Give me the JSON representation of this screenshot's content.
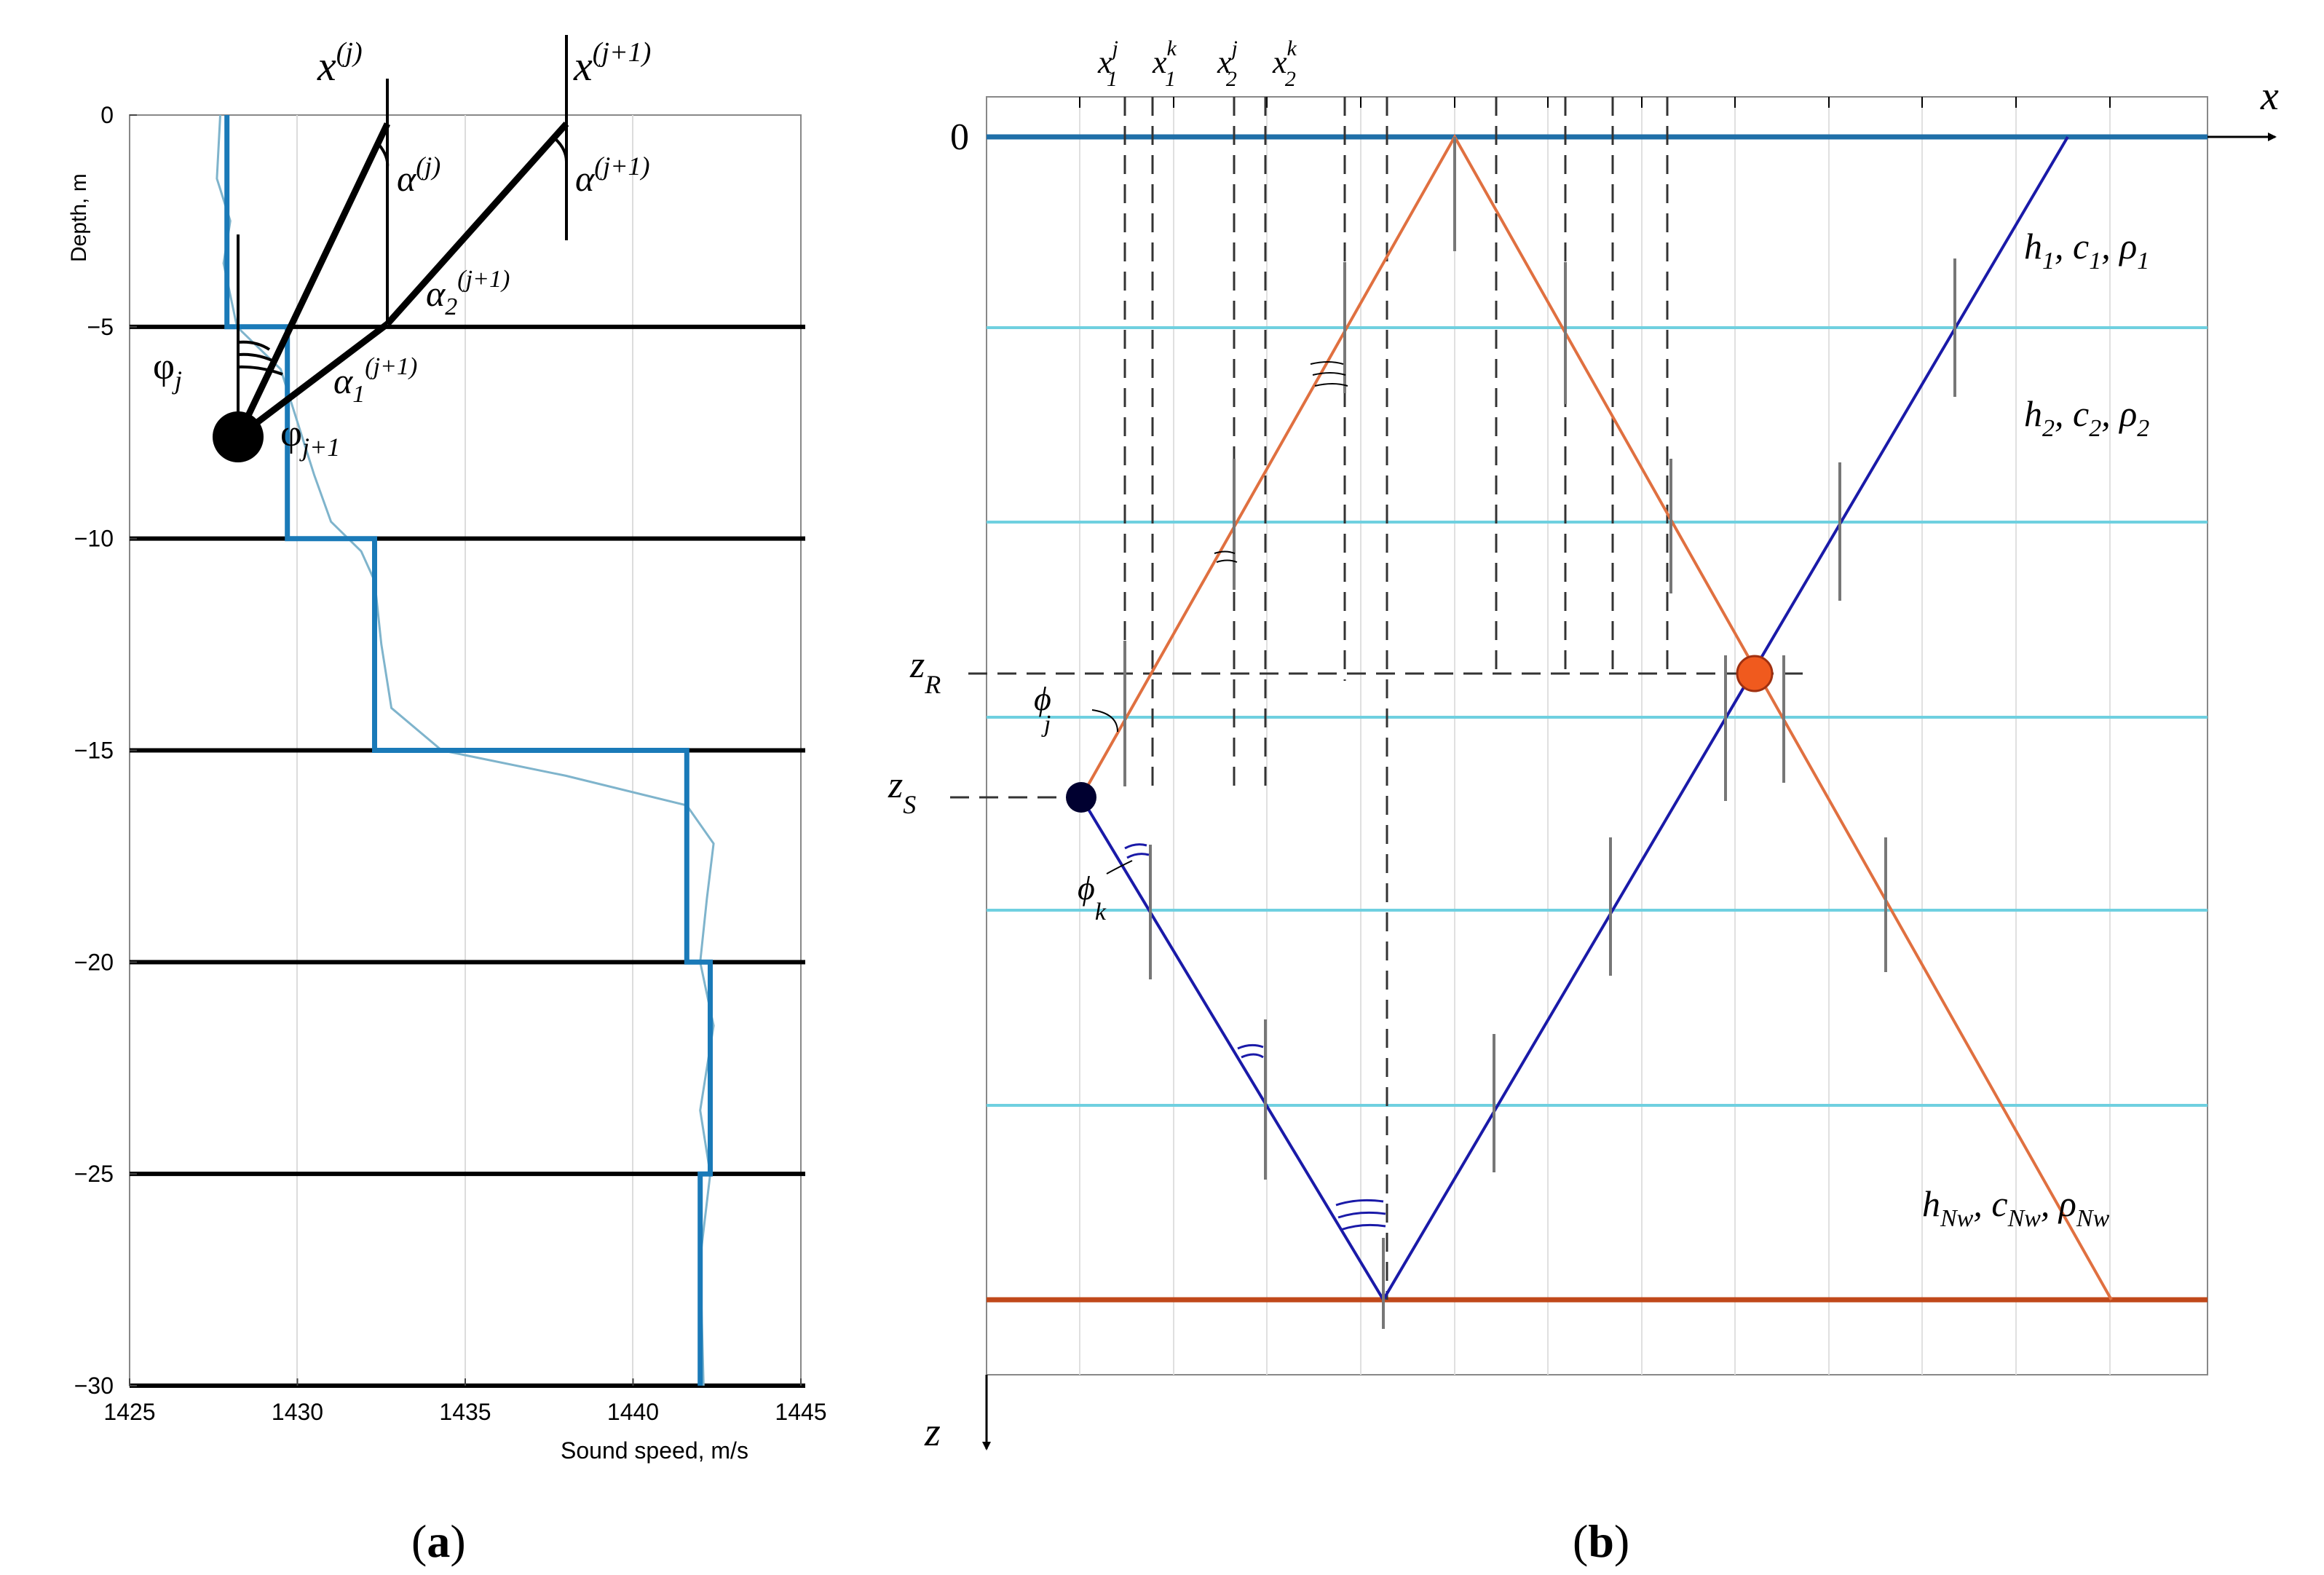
{
  "panel_a": {
    "chart_data": {
      "type": "line",
      "xlabel": "Sound speed, m/s",
      "ylabel": "Depth, m",
      "xlim": [
        1425,
        1445
      ],
      "ylim": [
        -30,
        0
      ],
      "x_ticks": [
        "1425",
        "1430",
        "1435",
        "1440",
        "1445"
      ],
      "y_ticks": [
        "0",
        "−5",
        "−10",
        "−15",
        "−20",
        "−25",
        "−30"
      ],
      "grid": true,
      "series": [
        {
          "style": "stepped profile (thick)",
          "color": "#1a7ab8",
          "points": [
            [
              1427.9,
              0
            ],
            [
              1427.9,
              -5
            ],
            [
              1429.7,
              -5
            ],
            [
              1429.7,
              -10
            ],
            [
              1432.3,
              -10
            ],
            [
              1432.3,
              -15
            ],
            [
              1441.6,
              -15
            ],
            [
              1441.6,
              -20
            ],
            [
              1442.3,
              -20
            ],
            [
              1442.3,
              -25
            ],
            [
              1442.0,
              -25
            ],
            [
              1442.0,
              -30
            ]
          ]
        },
        {
          "style": "measured profile (thin)",
          "color": "#7fb4cc",
          "points": [
            [
              1427.7,
              0
            ],
            [
              1427.6,
              -1.5
            ],
            [
              1428.0,
              -2.5
            ],
            [
              1427.8,
              -3.5
            ],
            [
              1428.2,
              -5
            ],
            [
              1429.5,
              -6
            ],
            [
              1430.5,
              -8.5
            ],
            [
              1431.0,
              -9.6
            ],
            [
              1431.9,
              -10.3
            ],
            [
              1432.3,
              -11
            ],
            [
              1432.5,
              -12.5
            ],
            [
              1432.8,
              -14
            ],
            [
              1434.3,
              -15
            ],
            [
              1438.0,
              -15.6
            ],
            [
              1441.6,
              -16.3
            ],
            [
              1442.4,
              -17.2
            ],
            [
              1442.2,
              -18.5
            ],
            [
              1442.0,
              -20
            ],
            [
              1442.4,
              -21.5
            ],
            [
              1442.0,
              -23.5
            ],
            [
              1442.3,
              -25
            ],
            [
              1442.0,
              -27
            ],
            [
              1442.1,
              -30
            ]
          ]
        }
      ],
      "horizontal_lines": [
        -5,
        -10,
        -15,
        -20,
        -25,
        -30
      ]
    },
    "labels": {
      "x_j": "x",
      "x_j_sup": "(j)",
      "x_j1": "x",
      "x_j1_sup": "(j+1)",
      "alpha_j": "α",
      "alpha_j_sup": "(j)",
      "alpha_j1": "α",
      "alpha_j1_sup": "(j+1)",
      "alpha2": "α",
      "alpha2_sub": "2",
      "alpha2_sup": "(j+1)",
      "alpha1": "α",
      "alpha1_sub": "1",
      "alpha1_sup": "(j+1)",
      "phi_j": "φ",
      "phi_j_sub": "j",
      "phi_j1": "φ",
      "phi_j1_sub": "j+1"
    },
    "caption": "(a)"
  },
  "panel_b": {
    "labels": {
      "origin": "0",
      "x_axis": "x",
      "z_axis": "z",
      "z_R": "z",
      "z_R_sub": "R",
      "z_S": "z",
      "z_S_sub": "S",
      "phi_j": "ϕ",
      "phi_j_sub": "j",
      "phi_k": "ϕ",
      "phi_k_sub": "k",
      "top_labels": [
        {
          "base": "x",
          "sup": "j",
          "sub": "1"
        },
        {
          "base": "x",
          "sup": "k",
          "sub": "1"
        },
        {
          "base": "x",
          "sup": "j",
          "sub": "2"
        },
        {
          "base": "x",
          "sup": "k",
          "sub": "2"
        }
      ],
      "layer1": {
        "h": "h",
        "c": "c",
        "rho": "ρ",
        "sub": "1"
      },
      "layer2": {
        "h": "h",
        "c": "c",
        "rho": "ρ",
        "sub": "2"
      },
      "layerN": {
        "h": "h",
        "c": "c",
        "rho": "ρ",
        "sub": "Nw"
      }
    },
    "colors": {
      "surface": "#1f6fa8",
      "layer_lines": "#6fd0e0",
      "bottom": "#c0481a",
      "ray_orange": "#e07040",
      "ray_blue": "#1a1aa8",
      "receiver": "#f05a1e",
      "source": "#000030"
    },
    "caption": "(b)"
  }
}
